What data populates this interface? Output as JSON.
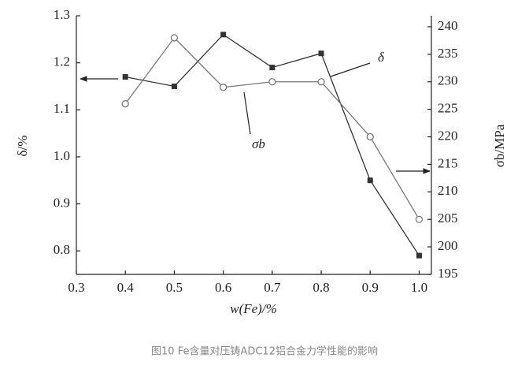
{
  "chart_data": {
    "type": "line",
    "x": [
      0.4,
      0.5,
      0.6,
      0.7,
      0.8,
      0.9,
      1.0
    ],
    "xlabel": "w(Fe)/%",
    "ylabel": "δ/%",
    "y2label": "σb/MPa",
    "caption": "图10 Fe含量对压铸ADC12铝合金力学性能的影响",
    "xlim": [
      0.3,
      1.025
    ],
    "xticks": [
      0.3,
      0.4,
      0.5,
      0.6,
      0.7,
      0.8,
      0.9,
      {
        "value": 1,
        "label": "1.0"
      }
    ],
    "ylim": [
      0.75,
      1.3
    ],
    "yticks": [
      0.8,
      0.9,
      {
        "value": 1,
        "label": "1.0"
      },
      1.1,
      1.2,
      1.3
    ],
    "y2lim": [
      195,
      242
    ],
    "y2ticks": [
      195,
      200,
      205,
      210,
      215,
      220,
      225,
      230,
      235,
      240
    ],
    "series": [
      {
        "name": "δ",
        "color": "#333333",
        "values": [
          1.17,
          1.15,
          1.26,
          1.19,
          1.22,
          0.95,
          0.79
        ]
      },
      {
        "name": "σb",
        "color": "#777777",
        "axis": "y2",
        "values": [
          226,
          238,
          229,
          230,
          230,
          220,
          205
        ]
      }
    ]
  }
}
